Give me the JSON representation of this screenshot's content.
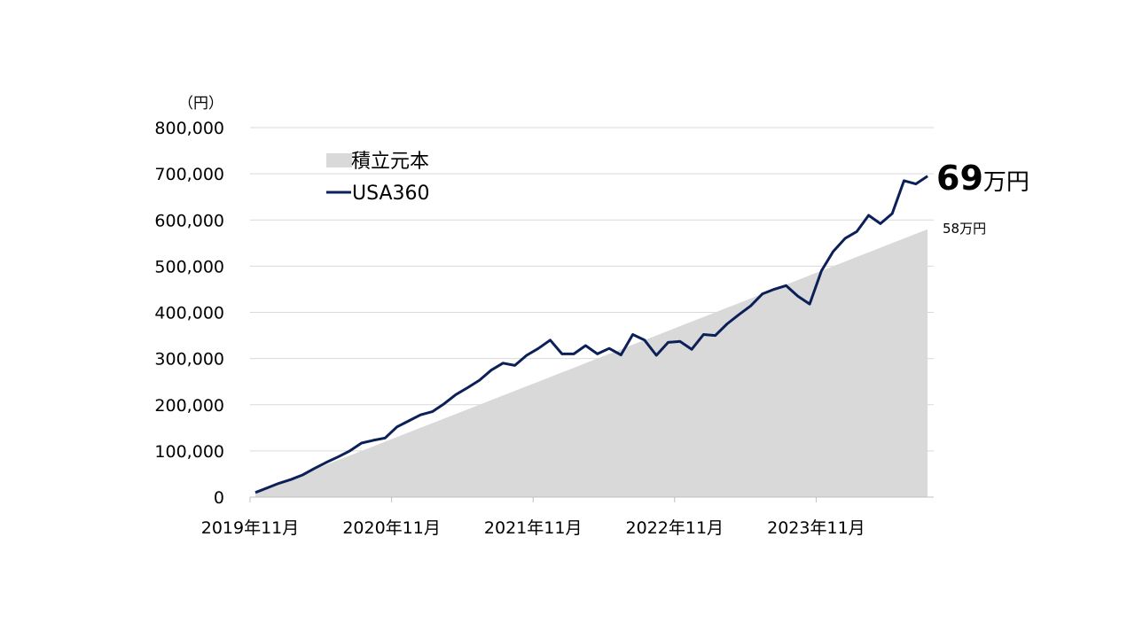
{
  "chart_data": {
    "type": "area+line",
    "y_unit_label": "（円）",
    "ylim": [
      0,
      800000
    ],
    "y_ticks": [
      "800,000",
      "700,000",
      "600,000",
      "500,000",
      "400,000",
      "300,000",
      "200,000",
      "100,000",
      "0"
    ],
    "y_tick_values": [
      800000,
      700000,
      600000,
      500000,
      400000,
      300000,
      200000,
      100000,
      0
    ],
    "x_tick_labels": [
      "2019年11月",
      "2020年11月",
      "2021年11月",
      "2022年11月",
      "2023年11月"
    ],
    "x_tick_months": [
      0,
      12,
      24,
      36,
      48
    ],
    "grid": true,
    "legend": [
      {
        "name": "積立元本",
        "kind": "area",
        "color": "#d9d9d9"
      },
      {
        "name": "USA360",
        "kind": "line",
        "color": "#0b2058"
      }
    ],
    "series": [
      {
        "name": "積立元本",
        "kind": "area",
        "color": "#d9d9d9",
        "values": [
          10000,
          20000,
          30000,
          40000,
          50000,
          60000,
          70000,
          80000,
          90000,
          100000,
          110000,
          120000,
          130000,
          140000,
          150000,
          160000,
          170000,
          180000,
          190000,
          200000,
          210000,
          220000,
          230000,
          240000,
          250000,
          260000,
          270000,
          280000,
          290000,
          300000,
          310000,
          320000,
          330000,
          340000,
          350000,
          360000,
          370000,
          380000,
          390000,
          400000,
          410000,
          420000,
          430000,
          440000,
          450000,
          460000,
          470000,
          480000,
          490000,
          500000,
          510000,
          520000,
          530000,
          540000,
          550000,
          560000,
          570000,
          580000
        ]
      },
      {
        "name": "USA360",
        "kind": "line",
        "color": "#0b2058",
        "values": [
          10000,
          20000,
          30000,
          38000,
          48000,
          62000,
          75000,
          87000,
          100000,
          117000,
          123000,
          128000,
          152000,
          165000,
          178000,
          185000,
          202000,
          222000,
          237000,
          253000,
          275000,
          290000,
          285000,
          307000,
          322000,
          340000,
          310000,
          310000,
          328000,
          310000,
          322000,
          308000,
          352000,
          340000,
          307000,
          335000,
          337000,
          320000,
          352000,
          350000,
          375000,
          395000,
          414000,
          440000,
          450000,
          458000,
          435000,
          418000,
          490000,
          532000,
          560000,
          575000,
          610000,
          592000,
          614000,
          685000,
          678000,
          695000
        ]
      }
    ],
    "annotations": {
      "final_value_number": "69",
      "final_value_unit": "万円",
      "principal_label": "58万円"
    }
  }
}
